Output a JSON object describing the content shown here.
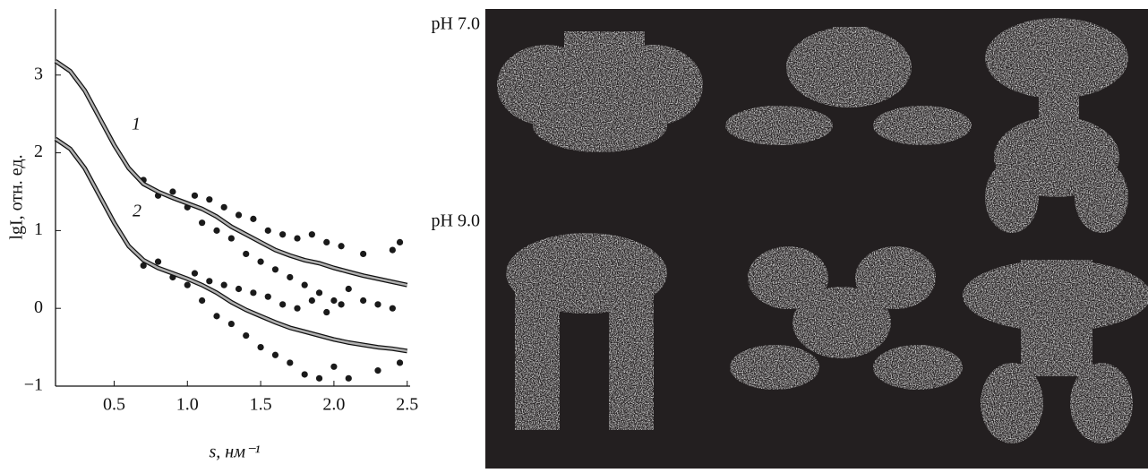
{
  "chart_data": {
    "type": "scatter",
    "xlabel": "s, нм⁻¹",
    "ylabel": "lgI, отн. ед.",
    "xlim": [
      0.1,
      2.52
    ],
    "ylim": [
      -1,
      3.85
    ],
    "xticks": [
      0.5,
      {
        "value": 1,
        "label": "1.0"
      },
      1.5,
      {
        "value": 2,
        "label": "2.0"
      },
      2.5
    ],
    "yticks": [
      {
        "value": -1,
        "label": "−1"
      },
      0,
      1,
      2,
      3
    ],
    "fit_x": [
      0.1,
      0.2,
      0.3,
      0.4,
      0.5,
      0.6,
      0.7,
      0.8,
      0.9,
      1.0,
      1.1,
      1.2,
      1.3,
      1.4,
      1.5,
      1.6,
      1.7,
      1.8,
      1.9,
      2.0,
      2.1,
      2.2,
      2.3,
      2.4,
      2.5
    ],
    "fit_color": "#b0b0b0",
    "series": [
      {
        "name": "1",
        "color": "#1a1a1a",
        "x": [
          0.7,
          0.8,
          0.9,
          1.0,
          1.05,
          1.1,
          1.15,
          1.2,
          1.25,
          1.3,
          1.35,
          1.4,
          1.45,
          1.5,
          1.55,
          1.6,
          1.65,
          1.7,
          1.75,
          1.8,
          1.85,
          1.9,
          1.95,
          2.0,
          2.05,
          2.1,
          2.2,
          2.3,
          2.4,
          2.45
        ],
        "values": [
          1.65,
          1.45,
          1.5,
          1.3,
          1.45,
          1.1,
          1.4,
          1.0,
          1.3,
          0.9,
          1.2,
          0.7,
          1.15,
          0.6,
          1.0,
          0.5,
          0.95,
          0.4,
          0.9,
          0.3,
          0.95,
          0.2,
          0.85,
          0.1,
          0.8,
          0.25,
          0.7,
          0.05,
          0.75,
          0.85
        ],
        "fit": [
          3.18,
          3.05,
          2.8,
          2.45,
          2.1,
          1.8,
          1.6,
          1.5,
          1.42,
          1.35,
          1.28,
          1.18,
          1.05,
          0.95,
          0.85,
          0.75,
          0.68,
          0.62,
          0.58,
          0.52,
          0.47,
          0.42,
          0.38,
          0.34,
          0.3
        ]
      },
      {
        "name": "2",
        "color": "#1a1a1a",
        "x": [
          0.7,
          0.8,
          0.9,
          1.0,
          1.05,
          1.1,
          1.15,
          1.2,
          1.25,
          1.3,
          1.35,
          1.4,
          1.45,
          1.5,
          1.55,
          1.6,
          1.65,
          1.7,
          1.75,
          1.8,
          1.85,
          1.9,
          1.95,
          2.0,
          2.05,
          2.1,
          2.2,
          2.3,
          2.4,
          2.45
        ],
        "values": [
          0.55,
          0.6,
          0.4,
          0.3,
          0.45,
          0.1,
          0.35,
          -0.1,
          0.3,
          -0.2,
          0.25,
          -0.35,
          0.2,
          -0.5,
          0.15,
          -0.6,
          0.05,
          -0.7,
          0.0,
          -0.85,
          0.1,
          -0.9,
          -0.05,
          -0.75,
          0.05,
          -0.9,
          0.1,
          -0.8,
          0.0,
          -0.7
        ],
        "fit": [
          2.18,
          2.05,
          1.8,
          1.45,
          1.1,
          0.8,
          0.62,
          0.52,
          0.45,
          0.38,
          0.3,
          0.2,
          0.08,
          -0.02,
          -0.1,
          -0.18,
          -0.25,
          -0.3,
          -0.35,
          -0.4,
          -0.44,
          -0.47,
          -0.5,
          -0.52,
          -0.55
        ]
      }
    ]
  },
  "image_panel": {
    "row_labels": [
      "pH 7.0",
      "pH 9.0"
    ]
  }
}
